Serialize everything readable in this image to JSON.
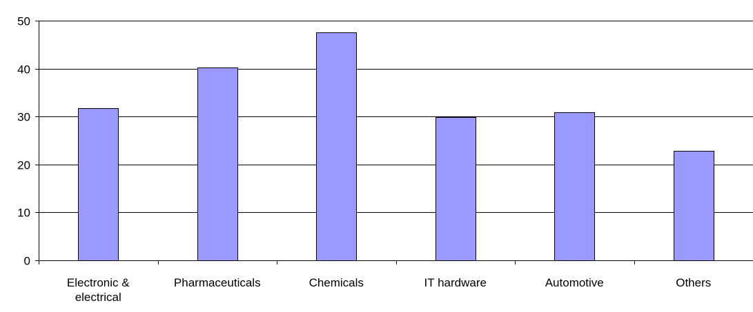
{
  "chart_data": {
    "type": "bar",
    "title": "",
    "xlabel": "",
    "ylabel": "",
    "categories": [
      [
        "Electronic &",
        "electrical"
      ],
      [
        "Pharmaceuticals"
      ],
      [
        "Chemicals"
      ],
      [
        "IT hardware"
      ],
      [
        "Automotive"
      ],
      [
        "Others"
      ]
    ],
    "values": [
      31.7,
      40.2,
      47.6,
      29.9,
      30.9,
      22.8
    ],
    "ylim": [
      0,
      50
    ],
    "yticks": [
      0,
      10,
      20,
      30,
      40,
      50
    ],
    "grid": true,
    "legend": "none",
    "colors": {
      "bar_fill": "#9999ff",
      "bar_stroke": "#000000",
      "grid": "#000000",
      "axis": "#000000",
      "text": "#000000"
    }
  }
}
